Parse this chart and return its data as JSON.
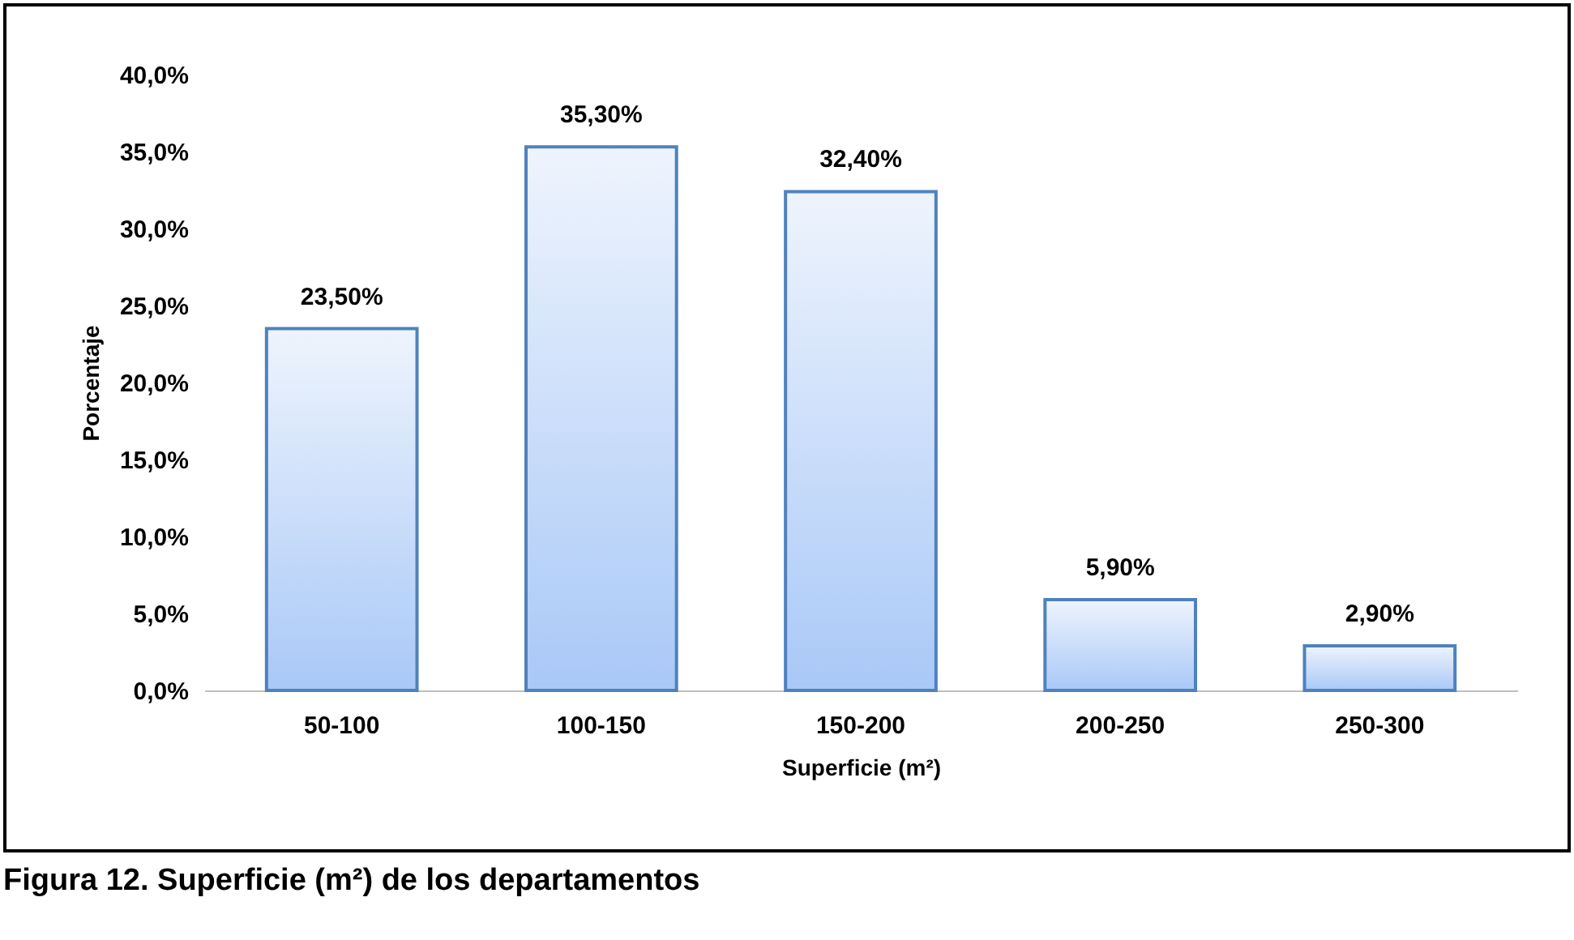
{
  "chart_data": {
    "type": "bar",
    "title": "Figura 12. Superficie (m²) de los departamentos",
    "xlabel": "Superficie (m²)",
    "ylabel": "Porcentaje",
    "categories": [
      "50-100",
      "100-150",
      "150-200",
      "200-250",
      "250-300"
    ],
    "values": [
      23.5,
      35.3,
      32.4,
      5.9,
      2.9
    ],
    "value_labels": [
      "23,50%",
      "35,30%",
      "32,40%",
      "5,90%",
      "2,90%"
    ],
    "color": "#4f81bd",
    "ylim": [
      0,
      40
    ],
    "yticks": [
      {
        "value": 0,
        "label": "0,0%"
      },
      {
        "value": 5,
        "label": "5,0%"
      },
      {
        "value": 10,
        "label": "10,0%"
      },
      {
        "value": 15,
        "label": "15,0%"
      },
      {
        "value": 20,
        "label": "20,0%"
      },
      {
        "value": 25,
        "label": "25,0%"
      },
      {
        "value": 30,
        "label": "30,0%"
      },
      {
        "value": 35,
        "label": "35,0%"
      },
      {
        "value": 40,
        "label": "40,0%"
      }
    ],
    "grid": false
  }
}
